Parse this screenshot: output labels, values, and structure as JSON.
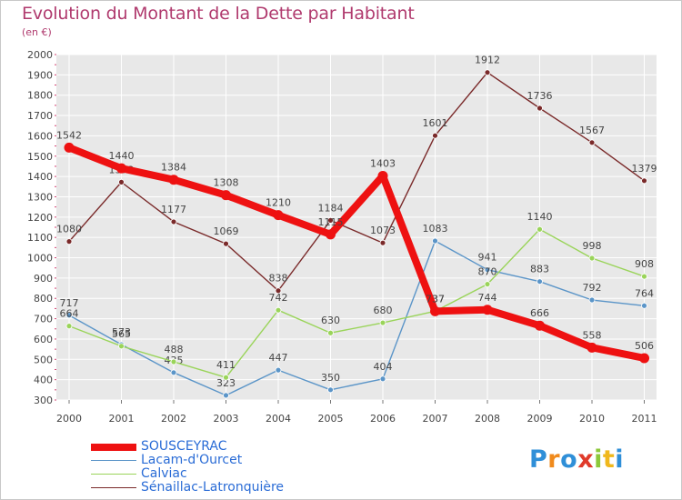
{
  "title": "Evolution du Montant de la Dette par Habitant",
  "subtitle": "(en €)",
  "logo": {
    "text": "ProXiti",
    "letters": [
      "P",
      "r",
      "o",
      "x",
      "i",
      "t",
      "i"
    ]
  },
  "chart_data": {
    "type": "line",
    "x": [
      "2000",
      "2001",
      "2002",
      "2003",
      "2004",
      "2005",
      "2006",
      "2007",
      "2008",
      "2009",
      "2010",
      "2011"
    ],
    "ylim": [
      300,
      2000
    ],
    "yticks": [
      300,
      400,
      500,
      600,
      700,
      800,
      900,
      1000,
      1100,
      1200,
      1300,
      1400,
      1500,
      1600,
      1700,
      1800,
      1900,
      2000
    ],
    "grid": true,
    "legend_position": "bottom-left",
    "series": [
      {
        "name": "Sénaillac-Latronquière",
        "color": "#7a2a2a",
        "values": [
          1080,
          1372,
          1177,
          1069,
          838,
          1184,
          1073,
          1601,
          1912,
          1736,
          1567,
          1379
        ],
        "labels": [
          "1080",
          "1372",
          "1177",
          "1069",
          "838",
          "1184",
          "1073",
          "1601",
          "1912",
          "1736",
          "1567",
          "1379"
        ]
      },
      {
        "name": "Lacam-d'Ourcet",
        "color": "#5b95c8",
        "values": [
          717,
          573,
          435,
          323,
          447,
          350,
          404,
          1083,
          941,
          883,
          792,
          764
        ],
        "labels": [
          "717",
          "573",
          "435",
          "323",
          "447",
          "350",
          "404",
          "1083",
          "941",
          "883",
          "792",
          "764"
        ]
      },
      {
        "name": "Calviac",
        "color": "#9ad45a",
        "values": [
          664,
          565,
          488,
          411,
          742,
          630,
          680,
          737,
          870,
          1140,
          998,
          908
        ],
        "labels": [
          "664",
          "565",
          "488",
          "411",
          "742",
          "630",
          "680",
          "737",
          "870",
          "1140",
          "998",
          "908"
        ]
      },
      {
        "name": "SOUSCEYRAC",
        "color": "#ee1111",
        "values": [
          1542,
          1440,
          1384,
          1308,
          1210,
          1115,
          1403,
          737,
          744,
          666,
          558,
          506
        ],
        "labels": [
          "1542",
          "1440",
          "1384",
          "1308",
          "1210",
          "1115",
          "1403",
          "737",
          "744",
          "666",
          "558",
          "506"
        ]
      }
    ],
    "legend_order": [
      "SOUSCEYRAC",
      "Lacam-d'Ourcet",
      "Calviac",
      "Sénaillac-Latronquière"
    ]
  }
}
